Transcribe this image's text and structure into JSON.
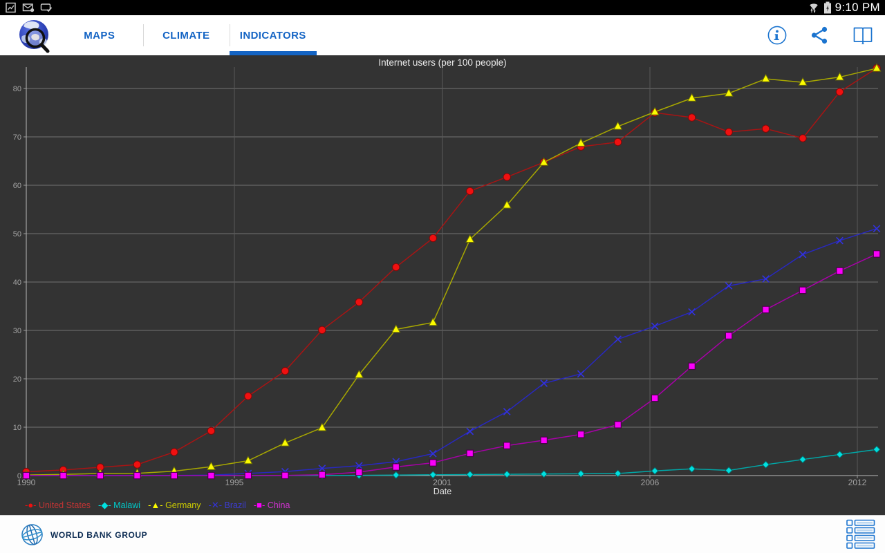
{
  "status_bar": {
    "time": "9:10 PM",
    "left_icons": [
      "gallery-notification-icon",
      "message-notification-icon",
      "sms-check-notification-icon"
    ],
    "right_icons": [
      "wifi-icon",
      "battery-charging-icon"
    ]
  },
  "app_bar": {
    "accent_color": "#1464c4",
    "tabs": [
      {
        "label": "MAPS",
        "active": false
      },
      {
        "label": "CLIMATE",
        "active": false
      },
      {
        "label": "INDICATORS",
        "active": true
      }
    ],
    "actions": [
      "info-button",
      "share-button",
      "reports-button"
    ]
  },
  "chart_data": {
    "type": "line",
    "title": "Internet users (per 100 people)",
    "xlabel": "Date",
    "ylabel": "",
    "background_color": "#333333",
    "grid": true,
    "legend_position": "bottom-left",
    "ylim": [
      0,
      84.4
    ],
    "y_ticks": [
      0,
      10,
      20,
      30,
      40,
      50,
      60,
      70,
      80
    ],
    "x_tick_labels": [
      "1990",
      "1995",
      "2001",
      "2006",
      "2012"
    ],
    "x": [
      1990,
      1991,
      1992,
      1993,
      1994,
      1995,
      1996,
      1997,
      1998,
      1999,
      2000,
      2001,
      2002,
      2003,
      2004,
      2005,
      2006,
      2007,
      2008,
      2009,
      2010,
      2011,
      2012,
      2013
    ],
    "series": [
      {
        "name": "United States",
        "marker": "circle",
        "marker_color": "#f01010",
        "edge_color": "#7a0a0a",
        "line_color": "#a81414",
        "legend_color": "#c43434",
        "values": [
          0.78,
          1.16,
          1.72,
          2.27,
          4.86,
          9.24,
          16.42,
          21.62,
          30.09,
          35.85,
          43.08,
          49.08,
          58.79,
          61.7,
          64.76,
          67.97,
          68.93,
          75,
          74,
          71,
          71.69,
          69.73,
          79.3,
          84.2
        ]
      },
      {
        "name": "Malawi",
        "marker": "diamond",
        "marker_color": "#00e0e0",
        "edge_color": "#056d6d",
        "line_color": "#00a8a8",
        "legend_color": "#00c8c8",
        "values": [
          0,
          0,
          0,
          0,
          0,
          0,
          0,
          0.01,
          0.02,
          0.05,
          0.11,
          0.17,
          0.22,
          0.27,
          0.32,
          0.38,
          0.43,
          0.97,
          1.39,
          1.07,
          2.26,
          3.33,
          4.35,
          5.4
        ]
      },
      {
        "name": "Germany",
        "marker": "triangle",
        "marker_color": "#fbfb00",
        "edge_color": "#6f6f05",
        "line_color": "#a8a800",
        "legend_color": "#cccc00",
        "values": [
          0.13,
          0.25,
          0.44,
          0.47,
          0.91,
          1.84,
          3.07,
          6.74,
          9.9,
          20.84,
          30.22,
          31.65,
          48.82,
          55.9,
          64.73,
          68.71,
          72.16,
          75.16,
          78,
          79,
          82,
          81.27,
          82.35,
          84.17
        ]
      },
      {
        "name": "Brazil",
        "marker": "x",
        "marker_color": "#3232e0",
        "edge_color": "#3232e0",
        "line_color": "#2828c0",
        "legend_color": "#3c3cd2",
        "values": [
          0,
          0,
          0.01,
          0.03,
          0.04,
          0.1,
          0.45,
          0.82,
          1.48,
          2.04,
          2.87,
          4.53,
          9.15,
          13.21,
          19.07,
          21.02,
          28.18,
          30.88,
          33.83,
          39.22,
          40.65,
          45.69,
          48.56,
          51.04
        ]
      },
      {
        "name": "China",
        "marker": "square",
        "marker_color": "#fb00fb",
        "edge_color": "#470347",
        "line_color": "#a800a8",
        "legend_color": "#d232d2",
        "values": [
          0,
          0,
          0,
          0,
          0,
          0,
          0.01,
          0.03,
          0.17,
          0.71,
          1.78,
          2.64,
          4.6,
          6.2,
          7.3,
          8.52,
          10.52,
          16,
          22.6,
          28.9,
          34.3,
          38.3,
          42.3,
          45.8
        ]
      }
    ]
  },
  "footer": {
    "logo_text": "WORLD BANK GROUP"
  }
}
